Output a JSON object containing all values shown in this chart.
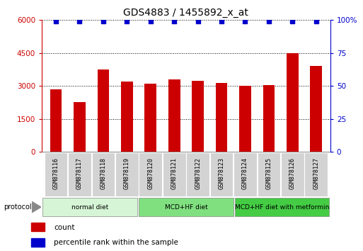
{
  "title": "GDS4883 / 1455892_x_at",
  "samples": [
    "GSM878116",
    "GSM878117",
    "GSM878118",
    "GSM878119",
    "GSM878120",
    "GSM878121",
    "GSM878122",
    "GSM878123",
    "GSM878124",
    "GSM878125",
    "GSM878126",
    "GSM878127"
  ],
  "counts": [
    2850,
    2250,
    3750,
    3200,
    3100,
    3300,
    3250,
    3150,
    3000,
    3050,
    4500,
    3900
  ],
  "percentile_y": [
    99,
    99,
    99,
    99,
    99,
    99,
    99,
    99,
    99,
    99,
    99,
    99
  ],
  "bar_color": "#cc0000",
  "dot_color": "#0000cc",
  "ylim_left": [
    0,
    6000
  ],
  "ylim_right": [
    0,
    100
  ],
  "yticks_left": [
    0,
    1500,
    3000,
    4500,
    6000
  ],
  "yticks_right": [
    0,
    25,
    50,
    75,
    100
  ],
  "ytick_labels_right": [
    "0",
    "25",
    "50",
    "75",
    "100%"
  ],
  "groups": [
    {
      "label": "normal diet",
      "start": 0,
      "end": 4,
      "color": "#d6f5d6"
    },
    {
      "label": "MCD+HF diet",
      "start": 4,
      "end": 8,
      "color": "#80e080"
    },
    {
      "label": "MCD+HF diet with metformin",
      "start": 8,
      "end": 12,
      "color": "#44cc44"
    }
  ],
  "protocol_label": "protocol",
  "legend_count_label": "count",
  "legend_percentile_label": "percentile rank within the sample",
  "bg_color": "#ffffff",
  "bar_width": 0.5,
  "title_fontsize": 10,
  "tick_fontsize": 7.5,
  "label_fontsize": 6
}
